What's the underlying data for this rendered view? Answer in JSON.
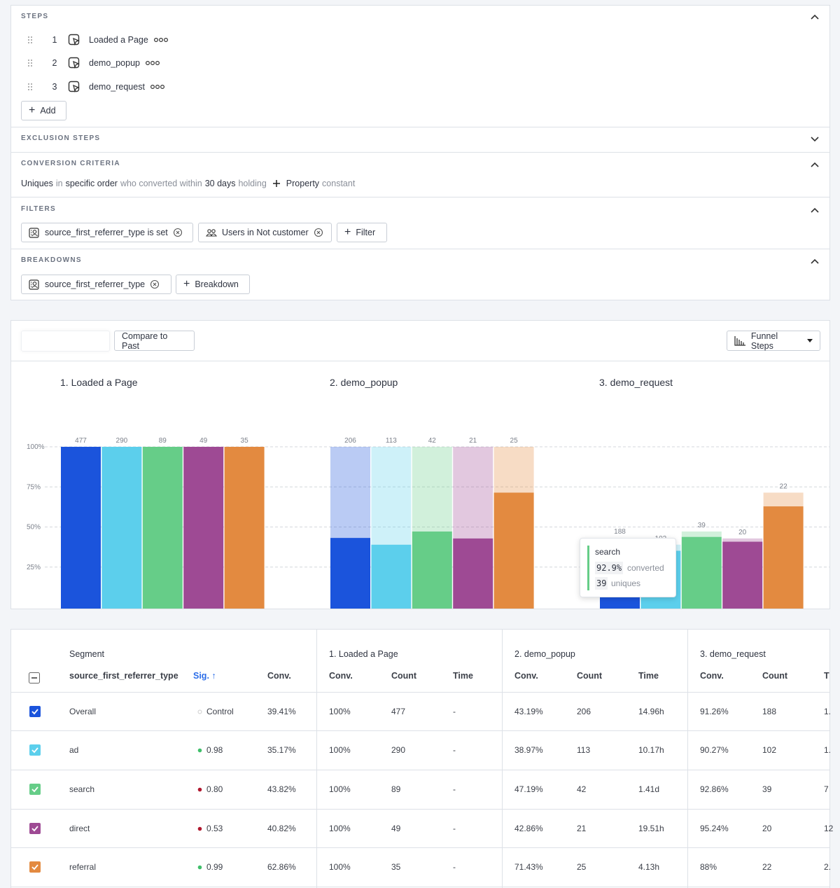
{
  "steps_panel": {
    "title": "STEPS",
    "steps": [
      {
        "number": "1",
        "name": "Loaded a Page"
      },
      {
        "number": "2",
        "name": "demo_popup"
      },
      {
        "number": "3",
        "name": "demo_request"
      }
    ],
    "add": "Add"
  },
  "exclusion": {
    "title": "EXCLUSION STEPS"
  },
  "conversion": {
    "title": "CONVERSION CRITERIA",
    "parts": [
      "Uniques",
      "in",
      "specific order",
      "who converted within",
      "30 days",
      "holding",
      "Property",
      "constant"
    ]
  },
  "filters": {
    "title": "FILTERS",
    "chips": [
      "source_first_referrer_type is set",
      "Users in Not customer"
    ],
    "add": "Filter"
  },
  "breakdowns": {
    "title": "BREAKDOWNS",
    "chips": [
      "source_first_referrer_type"
    ],
    "add": "Breakdown"
  },
  "toolbar": {
    "compare": "Compare to Past",
    "view": "Funnel Steps"
  },
  "chart_data": {
    "type": "bar",
    "ylim": [
      0,
      100
    ],
    "yticks": [
      {
        "value": 25,
        "label": "25%"
      },
      {
        "value": 50,
        "label": "50%"
      },
      {
        "value": 75,
        "label": "75%"
      },
      {
        "value": 100,
        "label": "100%"
      }
    ],
    "grid": true,
    "colors": [
      "#1b54dc",
      "#5ccfec",
      "#66cd88",
      "#9e4a94",
      "#e38a40"
    ],
    "steps": [
      {
        "title": "1. Loaded a Page",
        "values": [
          100,
          100,
          100,
          100,
          100
        ],
        "counts": [
          477,
          290,
          89,
          49,
          35
        ]
      },
      {
        "title": "2. demo_popup",
        "values": [
          43.19,
          38.97,
          47.19,
          42.86,
          71.43
        ],
        "counts": [
          206,
          113,
          42,
          21,
          25
        ]
      },
      {
        "title": "3. demo_request",
        "values": [
          39.41,
          35.17,
          43.82,
          40.82,
          62.86
        ],
        "counts": [
          188,
          102,
          39,
          20,
          22
        ]
      }
    ]
  },
  "tooltip": {
    "segment": "search",
    "rate": "92.9%",
    "rate_label": "converted",
    "count": "39",
    "count_label": "uniques"
  },
  "table": {
    "group_headers": [
      "Segment",
      "1. Loaded a Page",
      "2. demo_popup",
      "3. demo_request"
    ],
    "columns": [
      "source_first_referrer_type",
      "Sig. ↑",
      "Conv.",
      "Conv.",
      "Count",
      "Time",
      "Conv.",
      "Count",
      "Time",
      "Conv.",
      "Count",
      "T"
    ],
    "sig_dot_colors": [
      "none",
      "#3fbf6a",
      "#b0182f",
      "#b0182f",
      "#3fbf6a"
    ],
    "rows": [
      [
        "Overall",
        "Control",
        "39.41%",
        "100%",
        "477",
        "-",
        "43.19%",
        "206",
        "14.96h",
        "91.26%",
        "188",
        "1."
      ],
      [
        "ad",
        "0.98",
        "35.17%",
        "100%",
        "290",
        "-",
        "38.97%",
        "113",
        "10.17h",
        "90.27%",
        "102",
        "1."
      ],
      [
        "search",
        "0.80",
        "43.82%",
        "100%",
        "89",
        "-",
        "47.19%",
        "42",
        "1.41d",
        "92.86%",
        "39",
        "7"
      ],
      [
        "direct",
        "0.53",
        "40.82%",
        "100%",
        "49",
        "-",
        "42.86%",
        "21",
        "19.51h",
        "95.24%",
        "20",
        "12"
      ],
      [
        "referral",
        "0.99",
        "62.86%",
        "100%",
        "35",
        "-",
        "71.43%",
        "25",
        "4.13h",
        "88%",
        "22",
        "2."
      ]
    ]
  }
}
